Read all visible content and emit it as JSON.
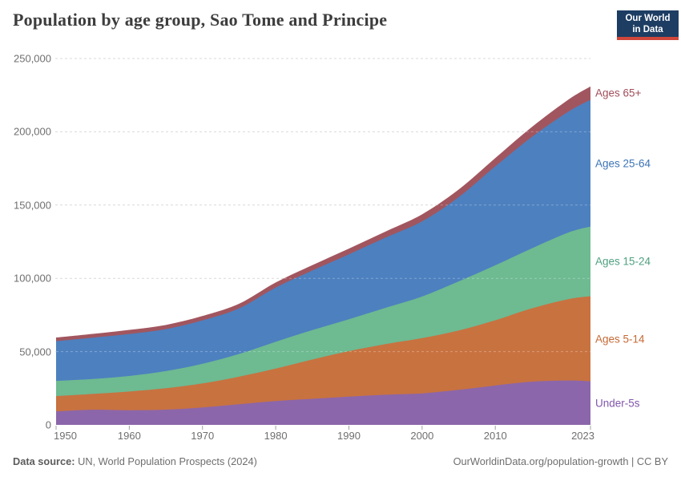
{
  "header": {
    "title": "Population by age group, Sao Tome and Principe",
    "logo": {
      "line1": "Our World",
      "line2": "in Data",
      "bg_color": "#1d3d63",
      "accent_color": "#d0463b"
    }
  },
  "chart_data": {
    "type": "area",
    "stacked": true,
    "title": "Population by age group, Sao Tome and Principe",
    "x": [
      1950,
      1955,
      1960,
      1965,
      1970,
      1975,
      1980,
      1985,
      1990,
      1995,
      2000,
      2005,
      2010,
      2015,
      2020,
      2023
    ],
    "series": [
      {
        "name": "Under-5s",
        "color": "#8c66aa",
        "label_color": "#8257ad",
        "values": [
          9200,
          10300,
          10000,
          10400,
          11900,
          14100,
          16300,
          17800,
          19300,
          20600,
          21500,
          23900,
          26900,
          29500,
          30300,
          29800
        ]
      },
      {
        "name": "Ages 5-14",
        "color": "#c87240",
        "label_color": "#c56a35",
        "values": [
          10400,
          10800,
          12800,
          14600,
          16400,
          18800,
          22100,
          26800,
          31000,
          34500,
          37700,
          40500,
          44500,
          50000,
          55500,
          58000
        ]
      },
      {
        "name": "Ages 15-24",
        "color": "#6eba91",
        "label_color": "#4fa080",
        "values": [
          10400,
          10200,
          10600,
          11700,
          13400,
          15500,
          18300,
          20100,
          21800,
          24800,
          28400,
          33500,
          37500,
          41000,
          45500,
          47500
        ]
      },
      {
        "name": "Ages 25-64",
        "color": "#4d80bf",
        "label_color": "#3c74b8",
        "values": [
          27100,
          28200,
          28600,
          28600,
          29600,
          31100,
          37000,
          40600,
          44300,
          47900,
          51300,
          57500,
          67500,
          76000,
          82500,
          86500
        ]
      },
      {
        "name": "Ages 65+",
        "color": "#a1565f",
        "label_color": "#a04e5a",
        "values": [
          2500,
          2600,
          2800,
          2900,
          3000,
          3200,
          3500,
          3700,
          3900,
          4100,
          4800,
          5200,
          5700,
          6800,
          8200,
          9100
        ]
      }
    ],
    "ylim": [
      0,
      250000
    ],
    "yticks": [
      0,
      50000,
      100000,
      150000,
      200000,
      250000
    ],
    "ytick_labels": [
      "0",
      "50,000",
      "100,000",
      "150,000",
      "200,000",
      "250,000"
    ],
    "xticks": [
      1950,
      1960,
      1970,
      1980,
      1990,
      2000,
      2010,
      2023
    ],
    "grid": "dashed-horizontal",
    "legend_position": "right-inline"
  },
  "footer": {
    "datasource_label": "Data source:",
    "datasource_text": " UN, World Population Prospects (2024)",
    "credit": "OurWorldinData.org/population-growth | CC BY"
  }
}
